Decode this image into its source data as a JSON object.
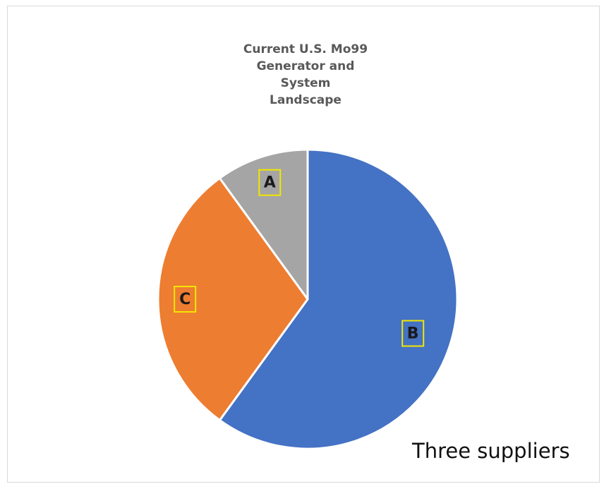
{
  "chart_data": {
    "type": "pie",
    "title_lines": [
      "Current U.S. Mo99",
      "Generator and",
      "System",
      "Landscape"
    ],
    "slices": [
      {
        "label": "A",
        "value": 10,
        "color": "#a5a5a5"
      },
      {
        "label": "B",
        "value": 60,
        "color": "#4472c4"
      },
      {
        "label": "C",
        "value": 30,
        "color": "#ed7d31"
      }
    ],
    "data_labels": true,
    "legend": "none"
  },
  "footnote": "Three suppliers"
}
